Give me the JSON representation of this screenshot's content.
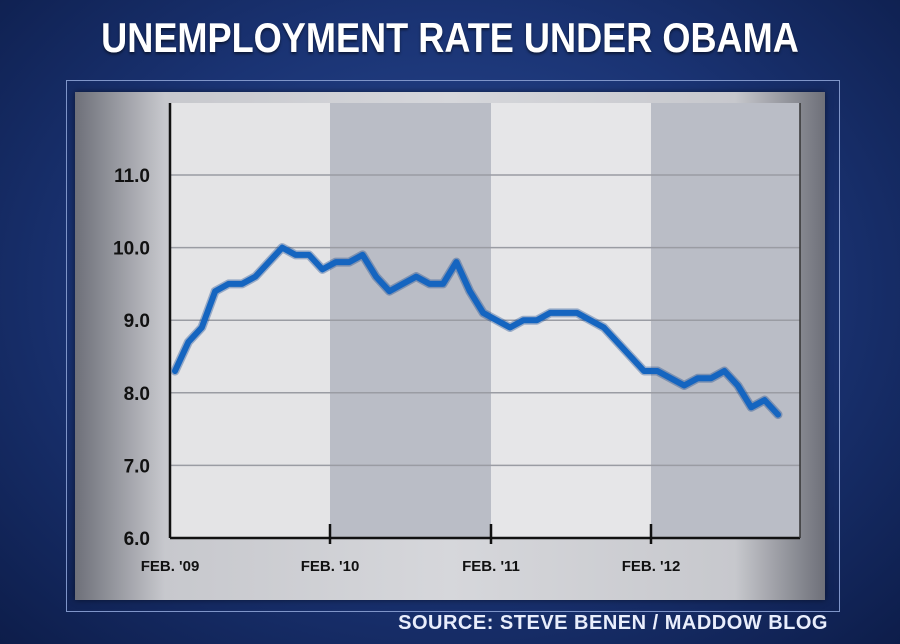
{
  "chart_data": {
    "type": "line",
    "title": "UNEMPLOYMENT RATE UNDER OBAMA",
    "source": "SOURCE: STEVE BENEN / MADDOW BLOG",
    "xlabel": "",
    "ylabel": "",
    "ylim": [
      6.0,
      11.5
    ],
    "yticks": [
      "6.0",
      "7.0",
      "8.0",
      "9.0",
      "10.0",
      "11.0"
    ],
    "xticks": [
      "FEB. '09",
      "FEB. '10",
      "FEB. '11",
      "FEB. '12"
    ],
    "grid": true,
    "series": [
      {
        "name": "Unemployment rate (%)",
        "color": "#1565c0",
        "start": "Feb 2009",
        "frequency": "monthly",
        "values": [
          8.3,
          8.7,
          8.9,
          9.4,
          9.5,
          9.5,
          9.6,
          9.8,
          10.0,
          9.9,
          9.9,
          9.7,
          9.8,
          9.8,
          9.9,
          9.6,
          9.4,
          9.5,
          9.6,
          9.5,
          9.5,
          9.8,
          9.4,
          9.1,
          9.0,
          8.9,
          9.0,
          9.0,
          9.1,
          9.1,
          9.1,
          9.0,
          8.9,
          8.7,
          8.5,
          8.3,
          8.3,
          8.2,
          8.1,
          8.2,
          8.2,
          8.3,
          8.1,
          7.8,
          7.9,
          7.7
        ]
      }
    ]
  }
}
